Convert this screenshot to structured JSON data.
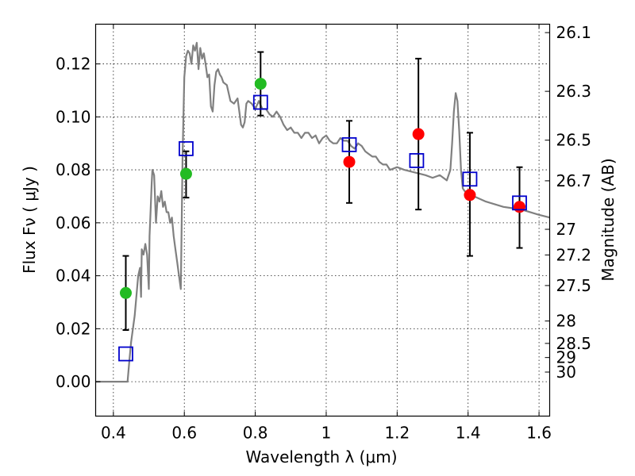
{
  "chart_data": {
    "type": "scatter",
    "xlabel": "Wavelength  λ (μm)",
    "ylabel": "Flux  Fν ( μJy )",
    "ylabel_right": "Magnitude (AB)",
    "xlim": [
      0.35,
      1.63
    ],
    "ylim": [
      -0.013,
      0.135
    ],
    "x_ticks": [
      0.4,
      0.6,
      0.8,
      1.0,
      1.2,
      1.4,
      1.6
    ],
    "x_tick_labels": [
      "0.4",
      "0.6",
      "0.8",
      "1",
      "1.2",
      "1.4",
      "1.6"
    ],
    "y_ticks": [
      0.0,
      0.02,
      0.04,
      0.06,
      0.08,
      0.1,
      0.12
    ],
    "y_tick_labels": [
      "0.00",
      "0.02",
      "0.04",
      "0.06",
      "0.08",
      "0.10",
      "0.12"
    ],
    "mag_ticks": [
      "26.1",
      "26.3",
      "26.5",
      "26.7",
      "27",
      "27.2",
      "27.5",
      "28",
      "28.5",
      "29",
      "30"
    ],
    "grid": true,
    "series": [
      {
        "marker": "line",
        "color": "#808080",
        "x": [
          0.35,
          0.43,
          0.435,
          0.44,
          0.445,
          0.45,
          0.46,
          0.47,
          0.475,
          0.478,
          0.48,
          0.485,
          0.49,
          0.495,
          0.5,
          0.502,
          0.505,
          0.508,
          0.51,
          0.515,
          0.52,
          0.525,
          0.53,
          0.535,
          0.54,
          0.545,
          0.55,
          0.555,
          0.56,
          0.565,
          0.57,
          0.575,
          0.58,
          0.585,
          0.59,
          0.595,
          0.6,
          0.605,
          0.61,
          0.615,
          0.62,
          0.625,
          0.63,
          0.635,
          0.64,
          0.645,
          0.65,
          0.655,
          0.66,
          0.665,
          0.67,
          0.675,
          0.68,
          0.685,
          0.69,
          0.695,
          0.7,
          0.705,
          0.71,
          0.72,
          0.73,
          0.74,
          0.75,
          0.76,
          0.765,
          0.77,
          0.775,
          0.78,
          0.79,
          0.8,
          0.81,
          0.82,
          0.83,
          0.84,
          0.85,
          0.86,
          0.87,
          0.88,
          0.89,
          0.9,
          0.91,
          0.92,
          0.93,
          0.94,
          0.95,
          0.96,
          0.97,
          0.98,
          0.99,
          1.0,
          1.01,
          1.02,
          1.03,
          1.04,
          1.05,
          1.06,
          1.07,
          1.08,
          1.09,
          1.1,
          1.11,
          1.12,
          1.13,
          1.14,
          1.15,
          1.16,
          1.17,
          1.18,
          1.2,
          1.22,
          1.25,
          1.28,
          1.3,
          1.32,
          1.34,
          1.35,
          1.355,
          1.36,
          1.365,
          1.37,
          1.375,
          1.38,
          1.385,
          1.39,
          1.4,
          1.45,
          1.5,
          1.55,
          1.6,
          1.63
        ],
        "y": [
          0.0,
          0.0,
          0.0,
          0.0,
          0.008,
          0.015,
          0.025,
          0.04,
          0.043,
          0.032,
          0.05,
          0.048,
          0.052,
          0.048,
          0.035,
          0.055,
          0.065,
          0.075,
          0.08,
          0.078,
          0.06,
          0.07,
          0.068,
          0.072,
          0.066,
          0.068,
          0.064,
          0.064,
          0.06,
          0.062,
          0.055,
          0.05,
          0.045,
          0.04,
          0.035,
          0.085,
          0.115,
          0.123,
          0.125,
          0.124,
          0.12,
          0.127,
          0.125,
          0.128,
          0.118,
          0.126,
          0.122,
          0.124,
          0.12,
          0.115,
          0.116,
          0.104,
          0.102,
          0.112,
          0.117,
          0.118,
          0.116,
          0.115,
          0.113,
          0.112,
          0.106,
          0.105,
          0.107,
          0.097,
          0.096,
          0.098,
          0.105,
          0.106,
          0.105,
          0.103,
          0.106,
          0.103,
          0.103,
          0.101,
          0.1,
          0.102,
          0.1,
          0.097,
          0.095,
          0.096,
          0.094,
          0.094,
          0.092,
          0.094,
          0.094,
          0.092,
          0.093,
          0.09,
          0.092,
          0.093,
          0.091,
          0.09,
          0.09,
          0.092,
          0.091,
          0.091,
          0.089,
          0.088,
          0.09,
          0.089,
          0.087,
          0.086,
          0.085,
          0.085,
          0.083,
          0.082,
          0.082,
          0.08,
          0.081,
          0.08,
          0.079,
          0.078,
          0.077,
          0.078,
          0.076,
          0.08,
          0.09,
          0.102,
          0.109,
          0.106,
          0.095,
          0.08,
          0.073,
          0.072,
          0.071,
          0.068,
          0.066,
          0.065,
          0.063,
          0.062
        ]
      },
      {
        "marker": "circle",
        "color": "#22bb22",
        "x": [
          0.435,
          0.605,
          0.815
        ],
        "y": [
          0.0335,
          0.0785,
          0.1125
        ],
        "yerr_low": [
          0.0195,
          0.0695,
          0.1005
        ],
        "yerr_high": [
          0.0475,
          0.087,
          0.1245
        ]
      },
      {
        "marker": "circle",
        "color": "#ff0000",
        "x": [
          1.065,
          1.26,
          1.405,
          1.545
        ],
        "y": [
          0.083,
          0.0935,
          0.0705,
          0.066
        ],
        "yerr_low": [
          0.0675,
          0.065,
          0.0475,
          0.0505
        ],
        "yerr_high": [
          0.0985,
          0.122,
          0.094,
          0.081
        ]
      },
      {
        "marker": "square",
        "color": "#0000cc",
        "x": [
          0.435,
          0.605,
          0.815,
          1.065,
          1.255,
          1.405,
          1.545
        ],
        "y": [
          0.0105,
          0.088,
          0.1055,
          0.0895,
          0.0835,
          0.0765,
          0.0675
        ]
      }
    ]
  }
}
